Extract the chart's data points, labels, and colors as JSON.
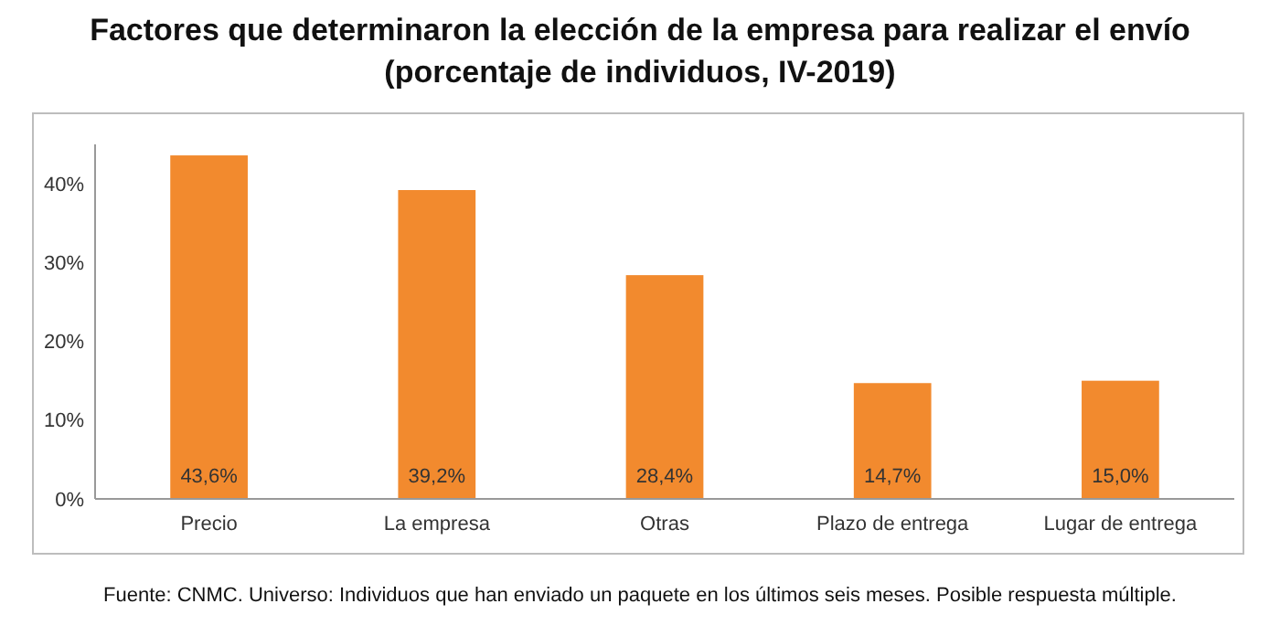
{
  "chart_data": {
    "type": "bar",
    "title": "Factores que determinaron la elección de la empresa para realizar el envío\n(porcentaje de individuos, IV-2019)",
    "categories": [
      "Precio",
      "La empresa",
      "Otras",
      "Plazo de entrega",
      "Lugar de entrega"
    ],
    "values": [
      43.6,
      39.2,
      28.4,
      14.7,
      15.0
    ],
    "value_labels": [
      "43,6%",
      "39,2%",
      "28,4%",
      "14,7%",
      "15,0%"
    ],
    "color": "#f28a2e",
    "ylim": [
      0,
      45
    ],
    "yticks": [
      {
        "value": 0,
        "label": "0%"
      },
      {
        "value": 10,
        "label": "10%"
      },
      {
        "value": 20,
        "label": "20%"
      },
      {
        "value": 30,
        "label": "30%"
      },
      {
        "value": 40,
        "label": "40%"
      }
    ],
    "grid": false,
    "annotations": [
      "Fuente: CNMC. Universo: Individuos que han enviado un paquete en los últimos seis meses. Posible respuesta múltiple."
    ]
  }
}
